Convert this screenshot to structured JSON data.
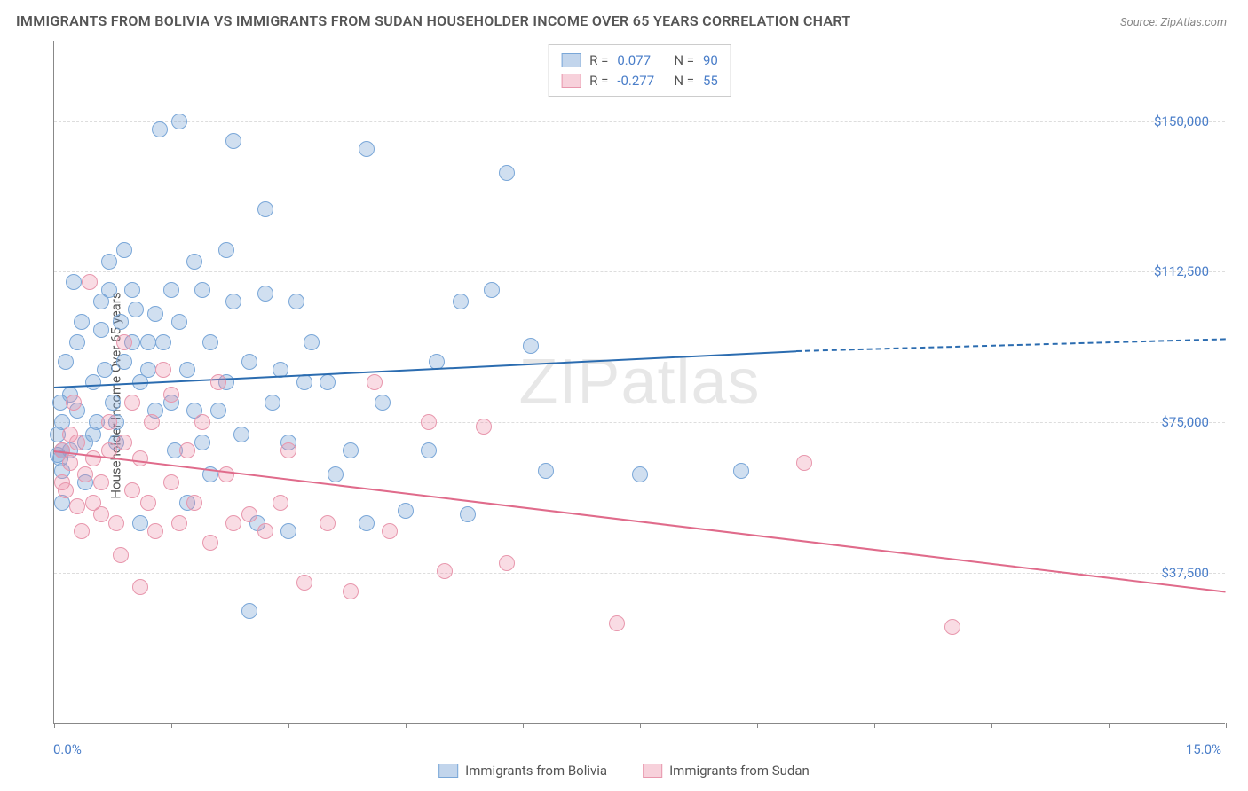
{
  "title": "IMMIGRANTS FROM BOLIVIA VS IMMIGRANTS FROM SUDAN HOUSEHOLDER INCOME OVER 65 YEARS CORRELATION CHART",
  "source_label": "Source: ",
  "source_value": "ZipAtlas.com",
  "y_axis_title": "Householder Income Over 65 years",
  "x_min_label": "0.0%",
  "x_max_label": "15.0%",
  "watermark": "ZIPatlas",
  "chart": {
    "type": "scatter",
    "xlim": [
      0,
      15
    ],
    "ylim": [
      0,
      170000
    ],
    "y_gridlines": [
      37500,
      75000,
      112500,
      150000
    ],
    "y_tick_labels": [
      "$37,500",
      "$75,000",
      "$112,500",
      "$150,000"
    ],
    "x_ticks": [
      0,
      1.5,
      3,
      4.5,
      6,
      7.5,
      9,
      10.5,
      12,
      13.5,
      15
    ],
    "background_color": "#ffffff",
    "grid_color": "#dddddd",
    "point_radius": 9,
    "point_stroke_width": 1.2,
    "series": [
      {
        "name": "Immigrants from Bolivia",
        "fill_color": "rgba(120,162,213,0.35)",
        "stroke_color": "#7aa7d8",
        "line_color": "#2b6cb0",
        "legend_swatch_fill": "rgba(120,162,213,0.45)",
        "legend_swatch_stroke": "#7aa7d8",
        "r_value": "0.077",
        "n_value": "90",
        "regression": {
          "x1": 0,
          "y1": 84000,
          "x2": 9.5,
          "y2": 93000,
          "x2_dashed": 15,
          "y2_dashed": 96000
        },
        "points": [
          [
            0.05,
            67000
          ],
          [
            0.05,
            72000
          ],
          [
            0.08,
            66000
          ],
          [
            0.08,
            80000
          ],
          [
            0.1,
            55000
          ],
          [
            0.1,
            63000
          ],
          [
            0.1,
            68000
          ],
          [
            0.1,
            75000
          ],
          [
            0.15,
            90000
          ],
          [
            0.2,
            82000
          ],
          [
            0.2,
            68000
          ],
          [
            0.25,
            110000
          ],
          [
            0.3,
            78000
          ],
          [
            0.3,
            95000
          ],
          [
            0.35,
            100000
          ],
          [
            0.4,
            60000
          ],
          [
            0.4,
            70000
          ],
          [
            0.5,
            72000
          ],
          [
            0.5,
            85000
          ],
          [
            0.55,
            75000
          ],
          [
            0.6,
            105000
          ],
          [
            0.6,
            98000
          ],
          [
            0.65,
            88000
          ],
          [
            0.7,
            115000
          ],
          [
            0.7,
            108000
          ],
          [
            0.75,
            80000
          ],
          [
            0.8,
            70000
          ],
          [
            0.8,
            75000
          ],
          [
            0.85,
            100000
          ],
          [
            0.9,
            118000
          ],
          [
            0.9,
            90000
          ],
          [
            1.0,
            108000
          ],
          [
            1.0,
            95000
          ],
          [
            1.05,
            103000
          ],
          [
            1.1,
            85000
          ],
          [
            1.1,
            50000
          ],
          [
            1.2,
            95000
          ],
          [
            1.2,
            88000
          ],
          [
            1.3,
            78000
          ],
          [
            1.3,
            102000
          ],
          [
            1.35,
            148000
          ],
          [
            1.4,
            95000
          ],
          [
            1.5,
            108000
          ],
          [
            1.5,
            80000
          ],
          [
            1.55,
            68000
          ],
          [
            1.6,
            100000
          ],
          [
            1.6,
            150000
          ],
          [
            1.7,
            55000
          ],
          [
            1.7,
            88000
          ],
          [
            1.8,
            78000
          ],
          [
            1.8,
            115000
          ],
          [
            1.9,
            70000
          ],
          [
            1.9,
            108000
          ],
          [
            2.0,
            95000
          ],
          [
            2.0,
            62000
          ],
          [
            2.1,
            78000
          ],
          [
            2.2,
            85000
          ],
          [
            2.2,
            118000
          ],
          [
            2.3,
            145000
          ],
          [
            2.3,
            105000
          ],
          [
            2.4,
            72000
          ],
          [
            2.5,
            90000
          ],
          [
            2.5,
            28000
          ],
          [
            2.6,
            50000
          ],
          [
            2.7,
            128000
          ],
          [
            2.7,
            107000
          ],
          [
            2.8,
            80000
          ],
          [
            2.9,
            88000
          ],
          [
            3.0,
            70000
          ],
          [
            3.0,
            48000
          ],
          [
            3.1,
            105000
          ],
          [
            3.2,
            85000
          ],
          [
            3.3,
            95000
          ],
          [
            3.5,
            85000
          ],
          [
            3.6,
            62000
          ],
          [
            3.8,
            68000
          ],
          [
            4.0,
            50000
          ],
          [
            4.0,
            143000
          ],
          [
            4.2,
            80000
          ],
          [
            4.5,
            53000
          ],
          [
            4.8,
            68000
          ],
          [
            5.2,
            105000
          ],
          [
            5.3,
            52000
          ],
          [
            5.6,
            108000
          ],
          [
            5.8,
            137000
          ],
          [
            6.1,
            94000
          ],
          [
            6.3,
            63000
          ],
          [
            7.5,
            62000
          ],
          [
            8.8,
            63000
          ],
          [
            4.9,
            90000
          ]
        ]
      },
      {
        "name": "Immigrants from Sudan",
        "fill_color": "rgba(235,140,165,0.3)",
        "stroke_color": "#e897ad",
        "line_color": "#e06b8b",
        "legend_swatch_fill": "rgba(235,140,165,0.4)",
        "legend_swatch_stroke": "#e897ad",
        "r_value": "-0.277",
        "n_value": "55",
        "regression": {
          "x1": 0,
          "y1": 68000,
          "x2": 15,
          "y2": 33000
        },
        "points": [
          [
            0.1,
            68000
          ],
          [
            0.1,
            60000
          ],
          [
            0.15,
            58000
          ],
          [
            0.2,
            72000
          ],
          [
            0.2,
            65000
          ],
          [
            0.25,
            80000
          ],
          [
            0.3,
            54000
          ],
          [
            0.3,
            70000
          ],
          [
            0.35,
            48000
          ],
          [
            0.4,
            62000
          ],
          [
            0.45,
            110000
          ],
          [
            0.5,
            66000
          ],
          [
            0.5,
            55000
          ],
          [
            0.6,
            60000
          ],
          [
            0.6,
            52000
          ],
          [
            0.7,
            75000
          ],
          [
            0.7,
            68000
          ],
          [
            0.8,
            50000
          ],
          [
            0.85,
            42000
          ],
          [
            0.9,
            95000
          ],
          [
            0.9,
            70000
          ],
          [
            1.0,
            58000
          ],
          [
            1.0,
            80000
          ],
          [
            1.1,
            34000
          ],
          [
            1.1,
            66000
          ],
          [
            1.2,
            55000
          ],
          [
            1.25,
            75000
          ],
          [
            1.3,
            48000
          ],
          [
            1.4,
            88000
          ],
          [
            1.5,
            82000
          ],
          [
            1.5,
            60000
          ],
          [
            1.6,
            50000
          ],
          [
            1.7,
            68000
          ],
          [
            1.8,
            55000
          ],
          [
            1.9,
            75000
          ],
          [
            2.0,
            45000
          ],
          [
            2.1,
            85000
          ],
          [
            2.2,
            62000
          ],
          [
            2.3,
            50000
          ],
          [
            2.5,
            52000
          ],
          [
            2.7,
            48000
          ],
          [
            2.9,
            55000
          ],
          [
            3.0,
            68000
          ],
          [
            3.2,
            35000
          ],
          [
            3.5,
            50000
          ],
          [
            3.8,
            33000
          ],
          [
            4.1,
            85000
          ],
          [
            4.3,
            48000
          ],
          [
            4.8,
            75000
          ],
          [
            5.0,
            38000
          ],
          [
            5.5,
            74000
          ],
          [
            5.8,
            40000
          ],
          [
            7.2,
            25000
          ],
          [
            9.6,
            65000
          ],
          [
            11.5,
            24000
          ]
        ]
      }
    ]
  },
  "legend_box": {
    "r_label": "R = ",
    "n_label": "N = "
  },
  "bottom_legend_label_1": "Immigrants from Bolivia",
  "bottom_legend_label_2": "Immigrants from Sudan"
}
